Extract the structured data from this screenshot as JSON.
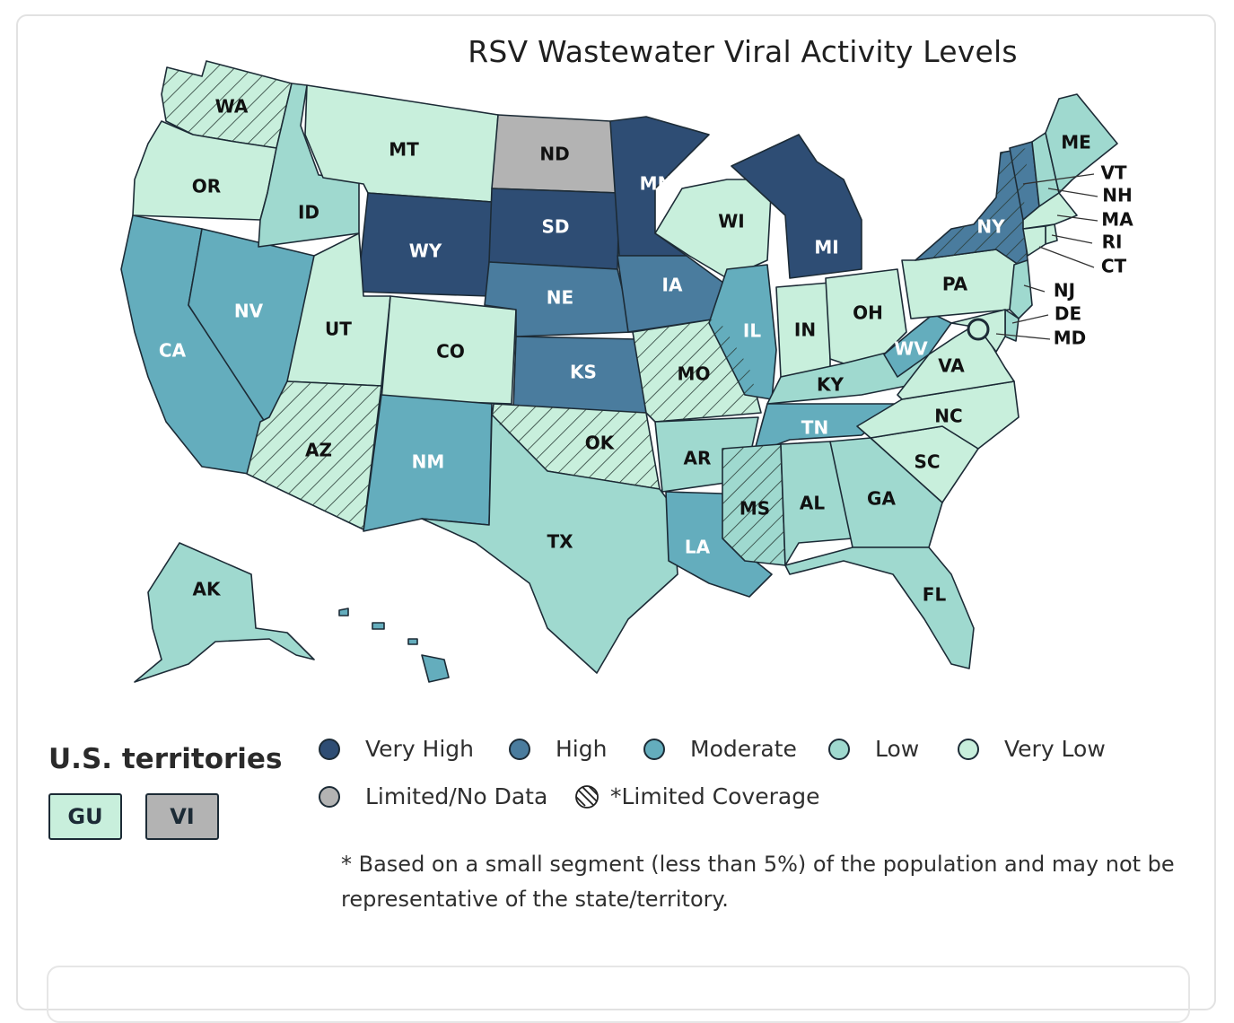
{
  "title": "RSV Wastewater Viral Activity Levels",
  "colors": {
    "very_high": "#2e4d74",
    "high": "#4a7c9e",
    "moderate": "#64adbd",
    "low": "#9fd9cf",
    "very_low": "#c8efdc",
    "no_data": "#b3b3b3"
  },
  "states": [
    {
      "abbr": "WA",
      "level": "very_low",
      "limited": true
    },
    {
      "abbr": "OR",
      "level": "very_low",
      "limited": false
    },
    {
      "abbr": "CA",
      "level": "moderate",
      "limited": false
    },
    {
      "abbr": "NV",
      "level": "moderate",
      "limited": false
    },
    {
      "abbr": "ID",
      "level": "low",
      "limited": false
    },
    {
      "abbr": "MT",
      "level": "very_low",
      "limited": false
    },
    {
      "abbr": "WY",
      "level": "very_high",
      "limited": false
    },
    {
      "abbr": "UT",
      "level": "very_low",
      "limited": false
    },
    {
      "abbr": "AZ",
      "level": "very_low",
      "limited": true
    },
    {
      "abbr": "CO",
      "level": "very_low",
      "limited": false
    },
    {
      "abbr": "NM",
      "level": "moderate",
      "limited": false
    },
    {
      "abbr": "ND",
      "level": "no_data",
      "limited": false
    },
    {
      "abbr": "SD",
      "level": "very_high",
      "limited": false
    },
    {
      "abbr": "NE",
      "level": "high",
      "limited": false
    },
    {
      "abbr": "KS",
      "level": "high",
      "limited": false
    },
    {
      "abbr": "OK",
      "level": "very_low",
      "limited": true
    },
    {
      "abbr": "TX",
      "level": "low",
      "limited": false
    },
    {
      "abbr": "MN",
      "level": "very_high",
      "limited": false
    },
    {
      "abbr": "IA",
      "level": "high",
      "limited": false
    },
    {
      "abbr": "MO",
      "level": "very_low",
      "limited": true
    },
    {
      "abbr": "AR",
      "level": "low",
      "limited": false
    },
    {
      "abbr": "LA",
      "level": "moderate",
      "limited": false
    },
    {
      "abbr": "WI",
      "level": "very_low",
      "limited": false
    },
    {
      "abbr": "IL",
      "level": "moderate",
      "limited": false
    },
    {
      "abbr": "MI",
      "level": "very_high",
      "limited": false
    },
    {
      "abbr": "IN",
      "level": "very_low",
      "limited": false
    },
    {
      "abbr": "OH",
      "level": "very_low",
      "limited": false
    },
    {
      "abbr": "KY",
      "level": "low",
      "limited": false
    },
    {
      "abbr": "TN",
      "level": "moderate",
      "limited": false
    },
    {
      "abbr": "MS",
      "level": "low",
      "limited": true
    },
    {
      "abbr": "AL",
      "level": "low",
      "limited": false
    },
    {
      "abbr": "GA",
      "level": "low",
      "limited": false
    },
    {
      "abbr": "FL",
      "level": "low",
      "limited": false
    },
    {
      "abbr": "SC",
      "level": "very_low",
      "limited": false
    },
    {
      "abbr": "NC",
      "level": "very_low",
      "limited": false
    },
    {
      "abbr": "VA",
      "level": "very_low",
      "limited": false
    },
    {
      "abbr": "WV",
      "level": "moderate",
      "limited": false
    },
    {
      "abbr": "PA",
      "level": "very_low",
      "limited": false
    },
    {
      "abbr": "NY",
      "level": "high",
      "limited": true
    },
    {
      "abbr": "VT",
      "level": "high",
      "limited": false
    },
    {
      "abbr": "NH",
      "level": "low",
      "limited": false
    },
    {
      "abbr": "ME",
      "level": "low",
      "limited": false
    },
    {
      "abbr": "MA",
      "level": "very_low",
      "limited": false
    },
    {
      "abbr": "RI",
      "level": "very_low",
      "limited": false
    },
    {
      "abbr": "CT",
      "level": "very_low",
      "limited": false
    },
    {
      "abbr": "NJ",
      "level": "low",
      "limited": false
    },
    {
      "abbr": "DE",
      "level": "low",
      "limited": false
    },
    {
      "abbr": "MD",
      "level": "very_low",
      "limited": false
    },
    {
      "abbr": "AK",
      "level": "low",
      "limited": false
    },
    {
      "abbr": "HI",
      "level": "moderate",
      "limited": false
    }
  ],
  "territories": {
    "title": "U.S. territories",
    "items": [
      {
        "abbr": "GU",
        "level": "very_low"
      },
      {
        "abbr": "VI",
        "level": "no_data"
      }
    ]
  },
  "legend": {
    "very_high": "Very High",
    "high": "High",
    "moderate": "Moderate",
    "low": "Low",
    "very_low": "Very Low",
    "no_data": "Limited/No Data",
    "limited_coverage": "*Limited Coverage"
  },
  "footnote": "* Based on a small segment (less than 5%) of the population and may not be representative of the state/territory."
}
